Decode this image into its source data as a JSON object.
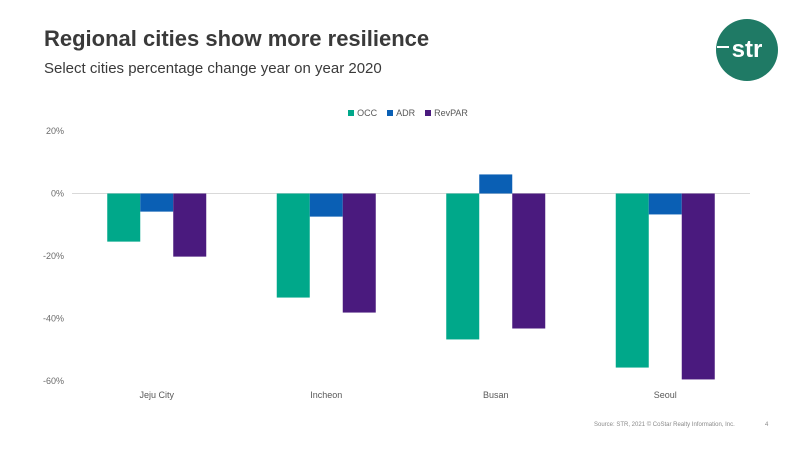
{
  "header": {
    "title": "Regional cities show more resilience",
    "subtitle": "Select cities percentage change year on year 2020"
  },
  "logo": {
    "text": "str",
    "color": "#1f7a65"
  },
  "footer": {
    "source": "Source: STR, 2021 © CoStar Realty Information, Inc.",
    "page_number": "4"
  },
  "chart_data": {
    "type": "bar",
    "title": "Select cities percentage change year on year 2020",
    "xlabel": "",
    "ylabel": "",
    "categories": [
      "Jeju City",
      "Incheon",
      "Busan",
      "Seoul"
    ],
    "series": [
      {
        "name": "OCC",
        "color": "#00a88a",
        "values": [
          -15.4,
          -33.3,
          -46.7,
          -55.7
        ]
      },
      {
        "name": "ADR",
        "color": "#0a5fb4",
        "values": [
          -5.8,
          -7.4,
          6.1,
          -6.7
        ]
      },
      {
        "name": "RevPAR",
        "color": "#4a1a7e",
        "values": [
          -20.2,
          -38.1,
          -43.2,
          -59.5
        ]
      }
    ],
    "ylim": [
      -60,
      20
    ],
    "yticks": [
      20,
      0,
      -20,
      -40,
      -60
    ],
    "ytick_labels": [
      "20%",
      "0%",
      "-20%",
      "-40%",
      "-60%"
    ],
    "grid": false,
    "zero_line": true,
    "legend_position": "top-center"
  }
}
